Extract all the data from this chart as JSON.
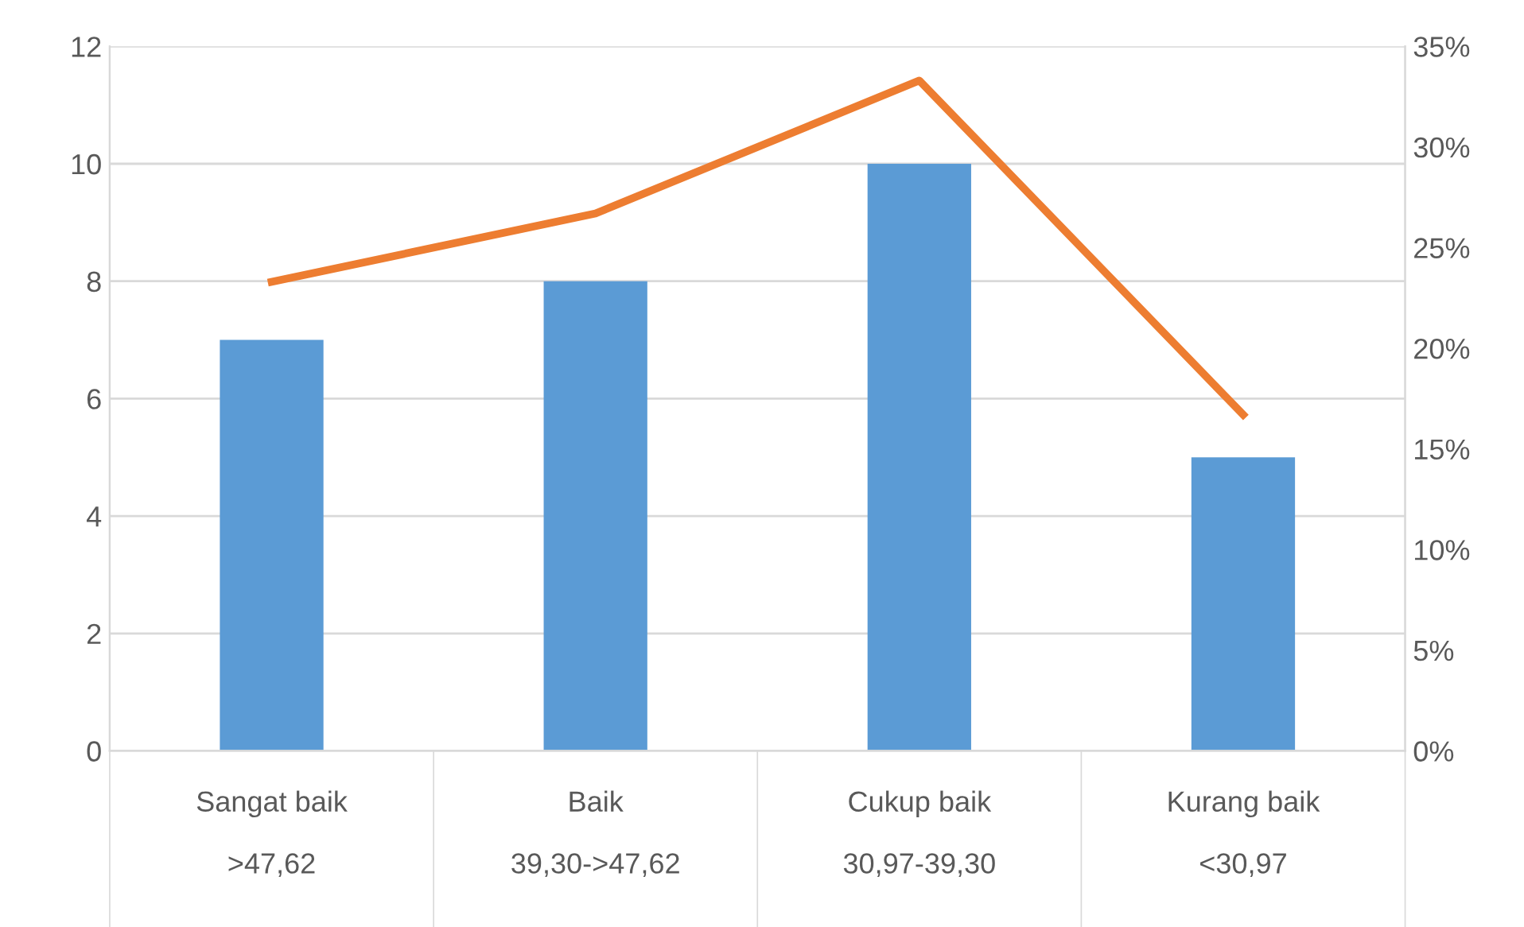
{
  "chart_data": {
    "type": "bar",
    "categories": [
      "Sangat baik\n\n>47,62",
      "Baik\n\n39,30->47,62",
      "Cukup baik\n\n30,97-39,30",
      "Kurang baik\n\n<30,97"
    ],
    "series": [
      {
        "color": "#5b9bd5",
        "values": [
          7,
          8,
          10,
          5
        ]
      },
      {
        "type": "line",
        "axis": "y2",
        "color": "#ed7d31",
        "marker": "none",
        "line_style": "solid",
        "values": [
          23.3,
          26.7,
          33.3,
          16.7
        ]
      }
    ],
    "ylim": [
      0,
      12
    ],
    "yticks": [
      0,
      2,
      4,
      6,
      8,
      10,
      12
    ],
    "y2lim": [
      0,
      35
    ],
    "y2ticks": [
      {
        "value": 0,
        "label": "0%"
      },
      {
        "value": 5,
        "label": "5%"
      },
      {
        "value": 10,
        "label": "10%"
      },
      {
        "value": 15,
        "label": "15%"
      },
      {
        "value": 20,
        "label": "20%"
      },
      {
        "value": 25,
        "label": "25%"
      },
      {
        "value": 30,
        "label": "30%"
      },
      {
        "value": 35,
        "label": "35%"
      }
    ],
    "grid": "y",
    "legend": false
  }
}
